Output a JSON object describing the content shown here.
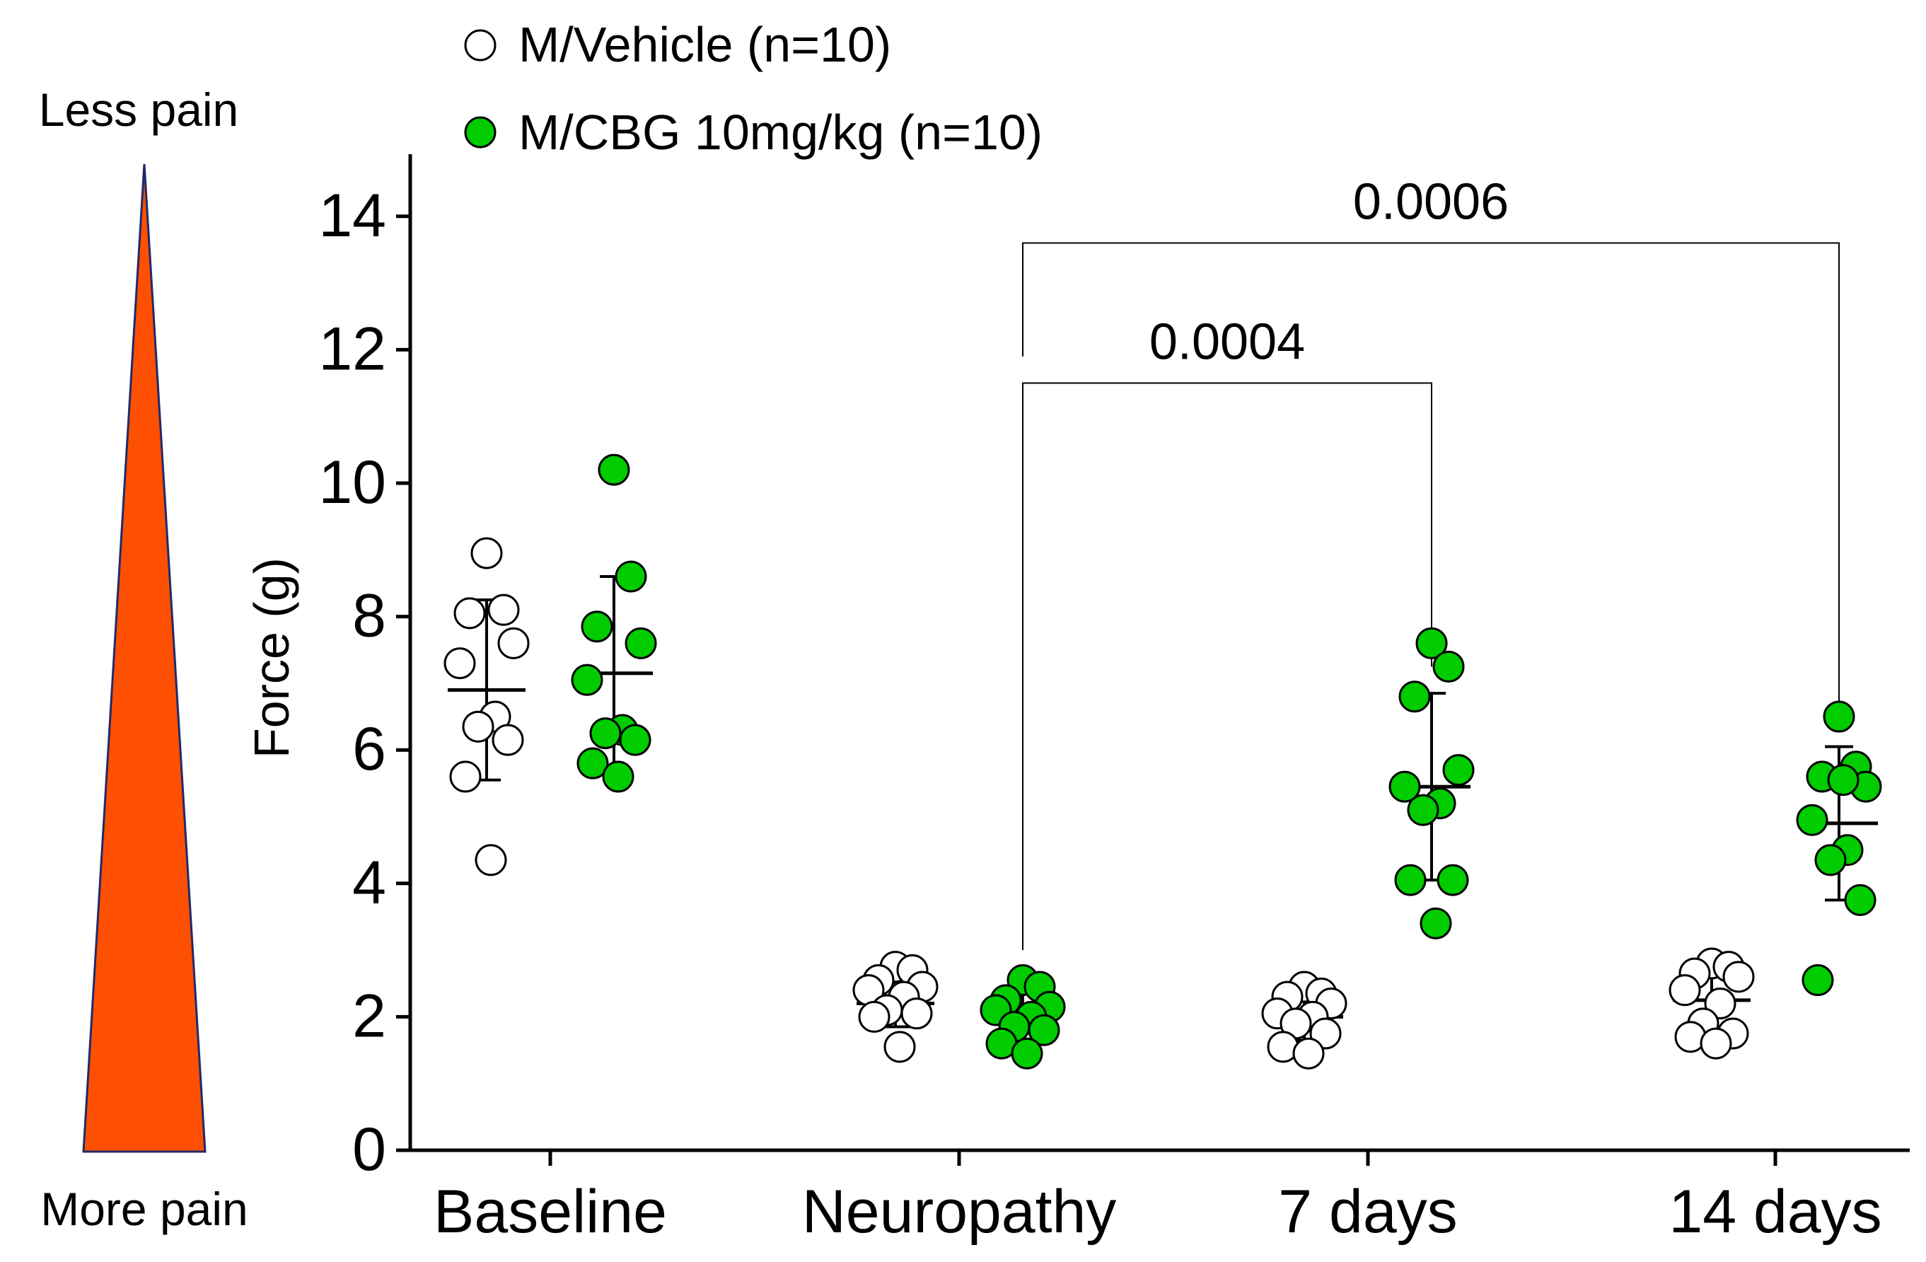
{
  "pain_scale": {
    "top_label": "Less pain",
    "bottom_label": "More pain",
    "color": "#FF4F00"
  },
  "chart_data": {
    "type": "scatter",
    "title": "",
    "xlabel": "",
    "ylabel": "Force (g)",
    "ylim": [
      0,
      15
    ],
    "yticks": [
      0,
      2,
      4,
      6,
      8,
      10,
      12,
      14
    ],
    "categories": [
      "Baseline",
      "Neuropathy",
      "7 days",
      "14 days"
    ],
    "legend_position": "top-left",
    "series": [
      {
        "name": "M/Vehicle (n=10)",
        "fill": "#ffffff",
        "mean": [
          6.9,
          2.2,
          2.0,
          2.25
        ],
        "sd": [
          1.35,
          0.35,
          0.35,
          0.45
        ],
        "points": [
          [
            8.95,
            8.1,
            8.05,
            7.6,
            7.3,
            6.5,
            6.35,
            6.15,
            5.6,
            4.35
          ],
          [
            2.75,
            2.7,
            2.55,
            2.45,
            2.4,
            2.3,
            2.1,
            2.05,
            2.0,
            1.55
          ],
          [
            2.45,
            2.35,
            2.3,
            2.2,
            2.05,
            2.0,
            1.9,
            1.75,
            1.55,
            1.45
          ],
          [
            2.8,
            2.75,
            2.65,
            2.6,
            2.4,
            2.2,
            1.9,
            1.75,
            1.7,
            1.6
          ]
        ]
      },
      {
        "name": "M/CBG 10mg/kg (n=10)",
        "fill": "#00CC00",
        "mean": [
          7.15,
          2.05,
          5.45,
          4.9
        ],
        "sd": [
          1.45,
          0.4,
          1.4,
          1.15
        ],
        "points": [
          [
            10.2,
            8.6,
            7.85,
            7.6,
            7.05,
            6.3,
            6.25,
            6.15,
            5.8,
            5.6
          ],
          [
            2.55,
            2.45,
            2.25,
            2.15,
            2.1,
            2.0,
            1.85,
            1.8,
            1.6,
            1.45
          ],
          [
            7.6,
            7.25,
            6.8,
            5.7,
            5.45,
            5.2,
            5.1,
            4.05,
            4.05,
            3.4
          ],
          [
            6.5,
            5.75,
            5.6,
            5.45,
            4.95,
            4.5,
            4.35,
            3.75,
            2.55,
            5.55
          ]
        ]
      }
    ],
    "annotations": [
      {
        "from_category": "Neuropathy",
        "to_category": "7 days",
        "group": "M/CBG 10mg/kg (n=10)",
        "label": "0.0004"
      },
      {
        "from_category": "Neuropathy",
        "to_category": "14 days",
        "group": "M/CBG 10mg/kg (n=10)",
        "label": "0.0006"
      }
    ]
  }
}
